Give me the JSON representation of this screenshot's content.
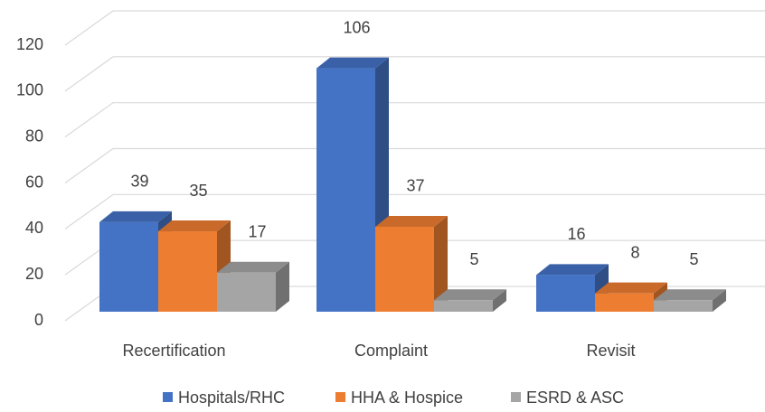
{
  "chart_data": {
    "type": "bar3d",
    "categories": [
      "Recertification",
      "Complaint",
      "Revisit"
    ],
    "series": [
      {
        "name": "Hospitals/RHC",
        "color": "#4472c4",
        "values": [
          39,
          106,
          16
        ]
      },
      {
        "name": "HHA & Hospice",
        "color": "#ed7d31",
        "values": [
          35,
          37,
          8
        ]
      },
      {
        "name": "ESRD & ASC",
        "color": "#a5a5a5",
        "values": [
          17,
          5,
          5
        ]
      }
    ],
    "ylim": [
      0,
      120
    ],
    "yticks": [
      0,
      20,
      40,
      60,
      80,
      100,
      120
    ],
    "grid": true,
    "legend": "bottom"
  }
}
